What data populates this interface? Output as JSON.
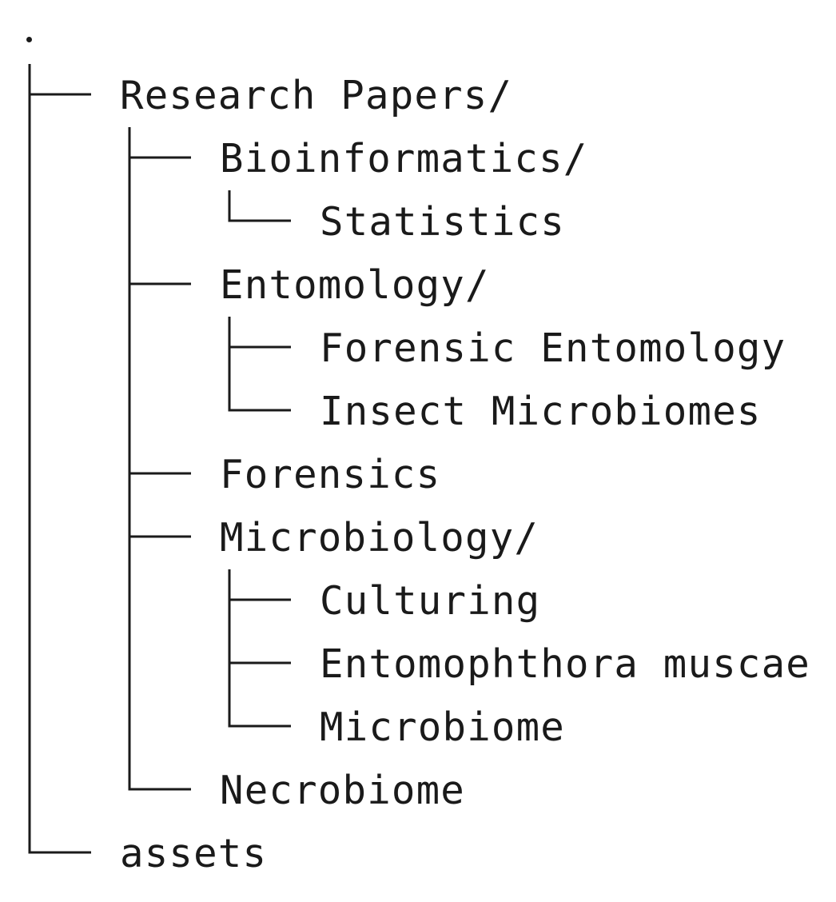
{
  "tree": {
    "root": ".",
    "nodes": [
      {
        "label": "Research Papers/",
        "depth": 0,
        "guides": [],
        "last": false
      },
      {
        "label": "Bioinformatics/",
        "depth": 1,
        "guides": [
          true
        ],
        "last": false
      },
      {
        "label": "Statistics",
        "depth": 2,
        "guides": [
          true,
          true
        ],
        "last": true
      },
      {
        "label": "Entomology/",
        "depth": 1,
        "guides": [
          true
        ],
        "last": false
      },
      {
        "label": "Forensic Entomology",
        "depth": 2,
        "guides": [
          true,
          true
        ],
        "last": false
      },
      {
        "label": "Insect Microbiomes",
        "depth": 2,
        "guides": [
          true,
          true
        ],
        "last": true
      },
      {
        "label": "Forensics",
        "depth": 1,
        "guides": [
          true
        ],
        "last": false
      },
      {
        "label": "Microbiology/",
        "depth": 1,
        "guides": [
          true
        ],
        "last": false
      },
      {
        "label": "Culturing",
        "depth": 2,
        "guides": [
          true,
          true
        ],
        "last": false
      },
      {
        "label": "Entomophthora muscae",
        "depth": 2,
        "guides": [
          true,
          true
        ],
        "last": false
      },
      {
        "label": "Microbiome",
        "depth": 2,
        "guides": [
          true,
          true
        ],
        "last": true
      },
      {
        "label": "Necrobiome",
        "depth": 1,
        "guides": [
          true
        ],
        "last": true
      },
      {
        "label": "assets",
        "depth": 0,
        "guides": [],
        "last": true
      }
    ]
  },
  "colors": {
    "text": "#1a1a1a",
    "lines": "#1a1a1a",
    "background": "#ffffff"
  }
}
